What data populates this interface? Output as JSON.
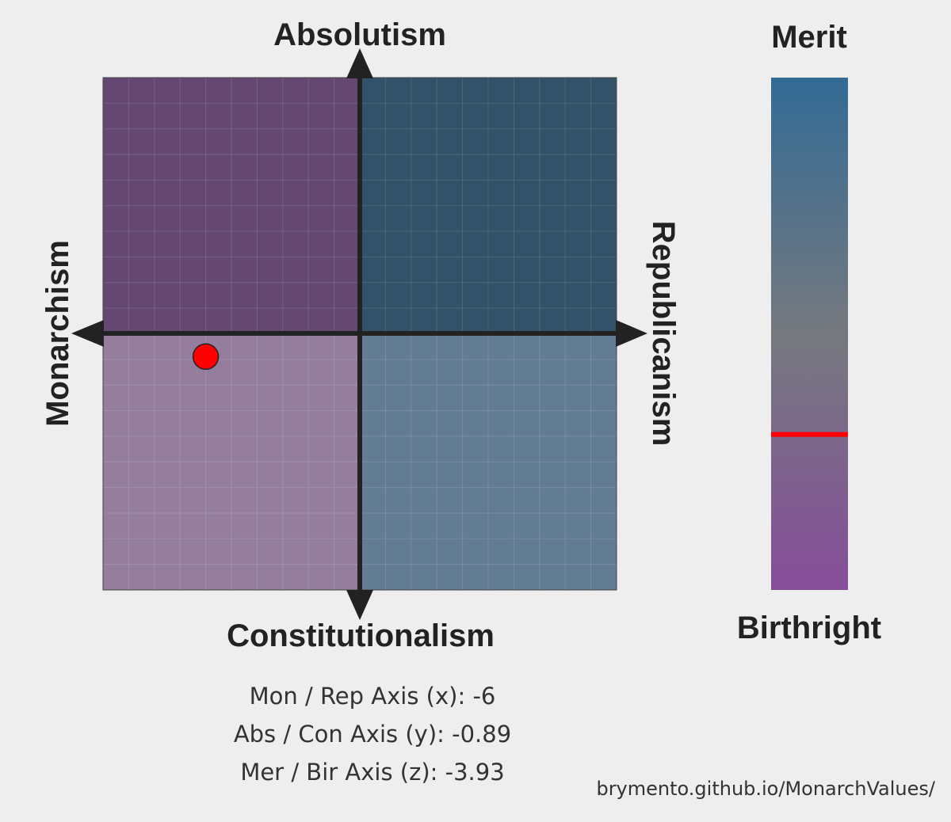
{
  "chart_data": [
    {
      "type": "scatter",
      "x_axis": {
        "left_label": "Monarchism",
        "right_label": "Republicanism",
        "range": [
          -10,
          10
        ]
      },
      "y_axis": {
        "top_label": "Absolutism",
        "bottom_label": "Constitutionalism",
        "range": [
          -10,
          10
        ]
      },
      "points": [
        {
          "x": -6,
          "y": -0.89,
          "color": "#ff0000"
        }
      ],
      "quadrant_colors": {
        "top_left": "#654872",
        "top_right": "#315268",
        "bottom_left": "#957d9e",
        "bottom_right": "#627d93"
      },
      "grid": true
    },
    {
      "type": "gradient-bar",
      "top_label": "Merit",
      "bottom_label": "Birthright",
      "range": [
        -10,
        10
      ],
      "value": -3.93,
      "marker_color": "#ff0000",
      "gradient_colors": [
        "#336b95",
        "#75797f",
        "#864d9a"
      ]
    }
  ],
  "scores": [
    {
      "label": "Mon / Rep Axis (x):",
      "value": "-6"
    },
    {
      "label": "Abs / Con Axis (y):",
      "value": "-0.89"
    },
    {
      "label": "Mer / Bir Axis (z):",
      "value": "-3.93"
    }
  ],
  "site_url": "brymento.github.io/MonarchValues/"
}
